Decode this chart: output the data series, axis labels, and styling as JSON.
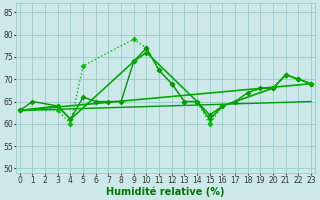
{
  "line_jagged": {
    "x": [
      0,
      3,
      4,
      5,
      9,
      10,
      11,
      12,
      13,
      14,
      15,
      16,
      20,
      21,
      22,
      23
    ],
    "y": [
      63,
      63,
      60,
      73,
      79,
      77,
      72,
      69,
      65,
      65,
      60,
      64,
      68,
      71,
      70,
      69
    ],
    "color": "#00bb00",
    "linewidth": 1.0,
    "marker": "D",
    "markersize": 2.5,
    "linestyle": ":"
  },
  "line_main": {
    "x": [
      0,
      1,
      3,
      4,
      5,
      6,
      7,
      8,
      9,
      10,
      11,
      12,
      13,
      14,
      15,
      16,
      17,
      18,
      19,
      20,
      21,
      22,
      23
    ],
    "y": [
      63,
      65,
      64,
      61,
      66,
      65,
      65,
      65,
      74,
      77,
      72,
      69,
      65,
      65,
      62,
      64,
      65,
      67,
      68,
      68,
      71,
      70,
      69
    ],
    "color": "#009900",
    "linewidth": 1.0,
    "marker": "D",
    "markersize": 2.5,
    "linestyle": "-"
  },
  "line_trend1": {
    "x": [
      0,
      3,
      4,
      9,
      10,
      14,
      15,
      16,
      20,
      21,
      22,
      23
    ],
    "y": [
      63,
      64,
      61,
      74,
      76,
      65,
      61,
      64,
      68,
      71,
      70,
      69
    ],
    "color": "#00aa00",
    "linewidth": 1.2,
    "marker": "D",
    "markersize": 2.5,
    "linestyle": "-"
  },
  "line_linear1": {
    "x": [
      0,
      23
    ],
    "y": [
      63,
      69
    ],
    "color": "#00aa00",
    "linewidth": 1.2,
    "linestyle": "-"
  },
  "line_linear2": {
    "x": [
      0,
      23
    ],
    "y": [
      63,
      65
    ],
    "color": "#009900",
    "linewidth": 1.0,
    "linestyle": "-"
  },
  "xlabel": "Humidité relative (%)",
  "xlim": [
    -0.3,
    23.3
  ],
  "ylim": [
    49,
    87
  ],
  "yticks": [
    50,
    55,
    60,
    65,
    70,
    75,
    80,
    85
  ],
  "xticks": [
    0,
    1,
    2,
    3,
    4,
    5,
    6,
    7,
    8,
    9,
    10,
    11,
    12,
    13,
    14,
    15,
    16,
    17,
    18,
    19,
    20,
    21,
    22,
    23
  ],
  "bg_color": "#cce8e8",
  "grid_color": "#99cccc",
  "line_color": "#007700",
  "xlabel_fontsize": 7,
  "tick_fontsize": 5.5
}
